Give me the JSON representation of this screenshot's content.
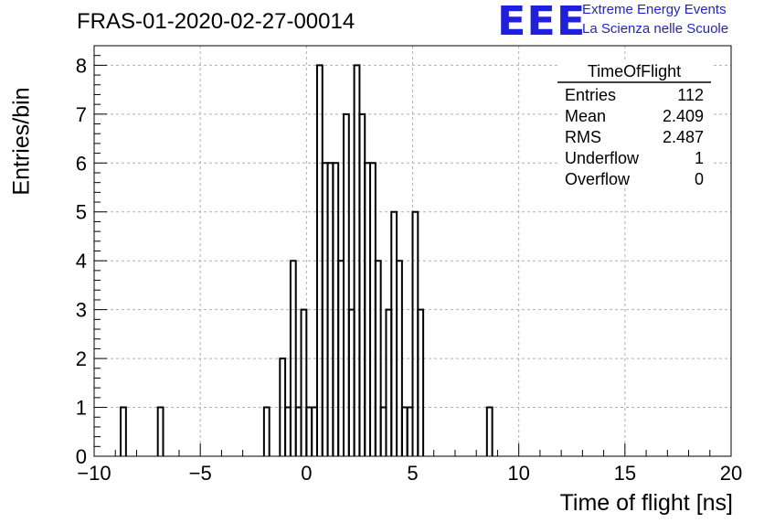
{
  "header": {
    "run_title": "FRAS-01-2020-02-27-00014",
    "logo_text": "EEE",
    "brand_line1": "Extreme Energy Events",
    "brand_line2": "La Scienza nelle Scuole",
    "brand_color": "#1f1fe0"
  },
  "stats_box": {
    "name": "TimeOfFlight",
    "rows": [
      {
        "label": "Entries",
        "value": "112"
      },
      {
        "label": "Mean",
        "value": "2.409"
      },
      {
        "label": "RMS",
        "value": "2.487"
      },
      {
        "label": "Underflow",
        "value": "1"
      },
      {
        "label": "Overflow",
        "value": "0"
      }
    ]
  },
  "chart_data": {
    "type": "histogram",
    "title": "FRAS-01-2020-02-27-00014",
    "xlabel": "Time of flight [ns]",
    "ylabel": "Entries/bin",
    "xlim": [
      -10,
      20
    ],
    "ylim": [
      0,
      8.4
    ],
    "x_ticks": [
      -10,
      -5,
      0,
      5,
      10,
      15,
      20
    ],
    "x_tick_labels": [
      "−10",
      "−5",
      "0",
      "5",
      "10",
      "15",
      "20"
    ],
    "y_ticks": [
      0,
      1,
      2,
      3,
      4,
      5,
      6,
      7,
      8
    ],
    "y_tick_labels": [
      "0",
      "1",
      "2",
      "3",
      "4",
      "5",
      "6",
      "7",
      "8"
    ],
    "grid": true,
    "line_color": "#000000",
    "bin_width": 0.25,
    "bins": [
      {
        "x": -8.75,
        "count": 1
      },
      {
        "x": -7.0,
        "count": 1
      },
      {
        "x": -2.0,
        "count": 1
      },
      {
        "x": -1.25,
        "count": 2
      },
      {
        "x": -1.0,
        "count": 1
      },
      {
        "x": -0.75,
        "count": 4
      },
      {
        "x": -0.5,
        "count": 1
      },
      {
        "x": -0.25,
        "count": 3
      },
      {
        "x": 0.0,
        "count": 1
      },
      {
        "x": 0.25,
        "count": 1
      },
      {
        "x": 0.5,
        "count": 8
      },
      {
        "x": 0.75,
        "count": 6
      },
      {
        "x": 1.0,
        "count": 6
      },
      {
        "x": 1.25,
        "count": 6
      },
      {
        "x": 1.5,
        "count": 4
      },
      {
        "x": 1.75,
        "count": 7
      },
      {
        "x": 2.0,
        "count": 3
      },
      {
        "x": 2.25,
        "count": 8
      },
      {
        "x": 2.5,
        "count": 7
      },
      {
        "x": 2.75,
        "count": 6
      },
      {
        "x": 3.0,
        "count": 6
      },
      {
        "x": 3.25,
        "count": 4
      },
      {
        "x": 3.5,
        "count": 1
      },
      {
        "x": 3.75,
        "count": 3
      },
      {
        "x": 4.0,
        "count": 5
      },
      {
        "x": 4.25,
        "count": 4
      },
      {
        "x": 4.5,
        "count": 1
      },
      {
        "x": 4.75,
        "count": 1
      },
      {
        "x": 5.0,
        "count": 5
      },
      {
        "x": 5.25,
        "count": 3
      },
      {
        "x": 8.5,
        "count": 1
      }
    ]
  }
}
